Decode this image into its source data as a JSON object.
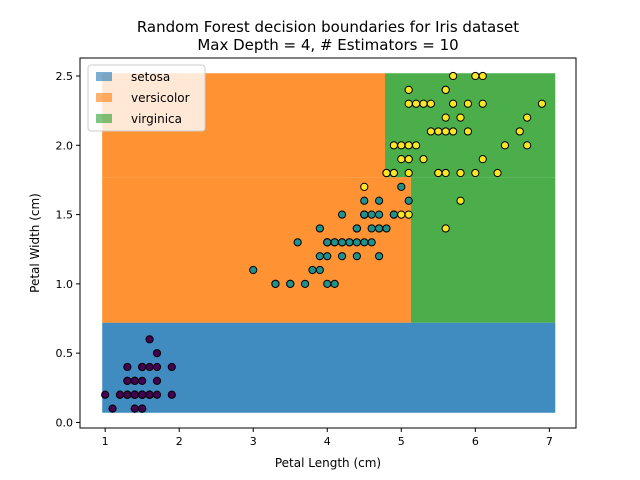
{
  "chart_data": {
    "type": "scatter",
    "title": "Random Forest decision boundaries for Iris dataset",
    "subtitle": "Max Depth = 4, # Estimators = 10",
    "xlabel": "Petal Length (cm)",
    "ylabel": "Petal Width (cm)",
    "xlim": [
      0.66,
      7.36
    ],
    "ylim": [
      -0.04,
      2.63
    ],
    "xticks": [
      1,
      2,
      3,
      4,
      5,
      6,
      7
    ],
    "yticks": [
      0.0,
      0.5,
      1.0,
      1.5,
      2.0,
      2.5
    ],
    "grid": false,
    "legend_position": "top-left",
    "legend": [
      {
        "label": "setosa",
        "color": "#1f77b4"
      },
      {
        "label": "versicolor",
        "color": "#ff7f0e"
      },
      {
        "label": "virginica",
        "color": "#2ca02c"
      }
    ],
    "regions": [
      {
        "class": "setosa",
        "color": "#1f77b4",
        "x": [
          0.96,
          7.08
        ],
        "y": [
          0.07,
          0.72
        ]
      },
      {
        "class": "versicolor",
        "color": "#ff7f0e",
        "x": [
          0.96,
          5.13
        ],
        "y": [
          0.72,
          1.77
        ]
      },
      {
        "class": "versicolor",
        "color": "#ff7f0e",
        "x": [
          0.96,
          4.78
        ],
        "y": [
          1.77,
          2.52
        ]
      },
      {
        "class": "virginica",
        "color": "#2ca02c",
        "x": [
          5.13,
          7.08
        ],
        "y": [
          0.72,
          1.77
        ]
      },
      {
        "class": "virginica",
        "color": "#2ca02c",
        "x": [
          4.78,
          7.08
        ],
        "y": [
          1.77,
          2.52
        ]
      }
    ],
    "series": [
      {
        "class": "setosa",
        "color": "#440154",
        "points": [
          [
            1.4,
            0.2
          ],
          [
            1.4,
            0.2
          ],
          [
            1.3,
            0.2
          ],
          [
            1.5,
            0.2
          ],
          [
            1.4,
            0.2
          ],
          [
            1.7,
            0.4
          ],
          [
            1.4,
            0.3
          ],
          [
            1.5,
            0.2
          ],
          [
            1.4,
            0.2
          ],
          [
            1.5,
            0.1
          ],
          [
            1.5,
            0.2
          ],
          [
            1.6,
            0.2
          ],
          [
            1.4,
            0.1
          ],
          [
            1.1,
            0.1
          ],
          [
            1.2,
            0.2
          ],
          [
            1.5,
            0.4
          ],
          [
            1.3,
            0.4
          ],
          [
            1.4,
            0.3
          ],
          [
            1.7,
            0.3
          ],
          [
            1.5,
            0.3
          ],
          [
            1.7,
            0.2
          ],
          [
            1.5,
            0.4
          ],
          [
            1.0,
            0.2
          ],
          [
            1.7,
            0.5
          ],
          [
            1.9,
            0.2
          ],
          [
            1.6,
            0.2
          ],
          [
            1.6,
            0.4
          ],
          [
            1.5,
            0.2
          ],
          [
            1.4,
            0.2
          ],
          [
            1.6,
            0.2
          ],
          [
            1.6,
            0.2
          ],
          [
            1.5,
            0.4
          ],
          [
            1.5,
            0.1
          ],
          [
            1.4,
            0.2
          ],
          [
            1.5,
            0.2
          ],
          [
            1.2,
            0.2
          ],
          [
            1.3,
            0.2
          ],
          [
            1.4,
            0.1
          ],
          [
            1.3,
            0.2
          ],
          [
            1.5,
            0.2
          ],
          [
            1.3,
            0.3
          ],
          [
            1.3,
            0.3
          ],
          [
            1.3,
            0.2
          ],
          [
            1.6,
            0.6
          ],
          [
            1.9,
            0.4
          ],
          [
            1.4,
            0.3
          ],
          [
            1.6,
            0.2
          ],
          [
            1.4,
            0.2
          ],
          [
            1.5,
            0.2
          ],
          [
            1.4,
            0.2
          ]
        ]
      },
      {
        "class": "versicolor",
        "color": "#21918c",
        "points": [
          [
            4.7,
            1.4
          ],
          [
            4.5,
            1.5
          ],
          [
            4.9,
            1.5
          ],
          [
            4.0,
            1.3
          ],
          [
            4.6,
            1.5
          ],
          [
            4.5,
            1.3
          ],
          [
            4.7,
            1.6
          ],
          [
            3.3,
            1.0
          ],
          [
            4.6,
            1.3
          ],
          [
            3.9,
            1.4
          ],
          [
            3.5,
            1.0
          ],
          [
            4.2,
            1.5
          ],
          [
            4.0,
            1.0
          ],
          [
            4.7,
            1.4
          ],
          [
            3.6,
            1.3
          ],
          [
            4.4,
            1.4
          ],
          [
            4.5,
            1.5
          ],
          [
            4.1,
            1.0
          ],
          [
            4.5,
            1.5
          ],
          [
            3.9,
            1.1
          ],
          [
            4.8,
            1.8
          ],
          [
            4.0,
            1.3
          ],
          [
            4.9,
            1.5
          ],
          [
            4.7,
            1.2
          ],
          [
            4.3,
            1.3
          ],
          [
            4.4,
            1.4
          ],
          [
            4.8,
            1.4
          ],
          [
            5.0,
            1.7
          ],
          [
            4.5,
            1.5
          ],
          [
            3.5,
            1.0
          ],
          [
            3.8,
            1.1
          ],
          [
            3.7,
            1.0
          ],
          [
            3.9,
            1.2
          ],
          [
            5.1,
            1.6
          ],
          [
            4.5,
            1.5
          ],
          [
            4.5,
            1.6
          ],
          [
            4.7,
            1.5
          ],
          [
            4.4,
            1.3
          ],
          [
            4.1,
            1.3
          ],
          [
            4.0,
            1.3
          ],
          [
            4.4,
            1.2
          ],
          [
            4.6,
            1.4
          ],
          [
            4.0,
            1.2
          ],
          [
            3.3,
            1.0
          ],
          [
            4.2,
            1.3
          ],
          [
            4.2,
            1.2
          ],
          [
            4.2,
            1.3
          ],
          [
            4.3,
            1.3
          ],
          [
            3.0,
            1.1
          ],
          [
            4.1,
            1.3
          ]
        ]
      },
      {
        "class": "virginica",
        "color": "#fde725",
        "points": [
          [
            6.0,
            2.5
          ],
          [
            5.1,
            1.9
          ],
          [
            5.9,
            2.1
          ],
          [
            5.6,
            1.8
          ],
          [
            5.8,
            2.2
          ],
          [
            6.6,
            2.1
          ],
          [
            4.5,
            1.7
          ],
          [
            6.3,
            1.8
          ],
          [
            5.8,
            1.8
          ],
          [
            6.1,
            2.5
          ],
          [
            5.1,
            2.0
          ],
          [
            5.3,
            1.9
          ],
          [
            5.5,
            2.1
          ],
          [
            5.0,
            2.0
          ],
          [
            5.1,
            2.4
          ],
          [
            5.3,
            2.3
          ],
          [
            5.5,
            1.8
          ],
          [
            6.7,
            2.2
          ],
          [
            6.9,
            2.3
          ],
          [
            5.0,
            1.5
          ],
          [
            5.7,
            2.3
          ],
          [
            4.9,
            2.0
          ],
          [
            6.7,
            2.0
          ],
          [
            4.9,
            1.8
          ],
          [
            5.7,
            2.1
          ],
          [
            6.0,
            1.8
          ],
          [
            4.8,
            1.8
          ],
          [
            4.9,
            1.8
          ],
          [
            5.6,
            2.1
          ],
          [
            5.8,
            1.6
          ],
          [
            6.1,
            1.9
          ],
          [
            6.4,
            2.0
          ],
          [
            5.6,
            2.2
          ],
          [
            5.1,
            1.5
          ],
          [
            5.6,
            1.4
          ],
          [
            6.1,
            2.3
          ],
          [
            5.6,
            2.4
          ],
          [
            5.5,
            1.8
          ],
          [
            4.8,
            1.8
          ],
          [
            5.4,
            2.1
          ],
          [
            5.6,
            2.4
          ],
          [
            5.1,
            2.3
          ],
          [
            5.1,
            1.9
          ],
          [
            5.9,
            2.3
          ],
          [
            5.7,
            2.5
          ],
          [
            5.2,
            2.3
          ],
          [
            5.0,
            1.9
          ],
          [
            5.2,
            2.0
          ],
          [
            5.4,
            2.3
          ],
          [
            5.1,
            1.8
          ]
        ]
      }
    ]
  }
}
